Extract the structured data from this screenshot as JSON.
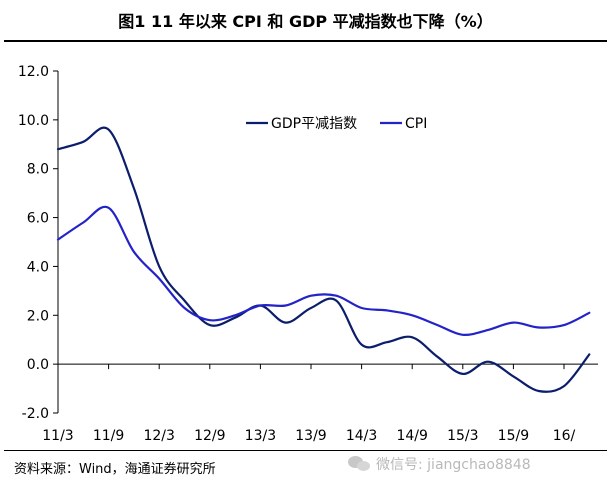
{
  "figure": {
    "title": "图1   11 年以来 CPI 和 GDP 平减指数也下降（%）",
    "source": "资料来源：Wind，海通证券研究所",
    "watermark": "微信号: jiangchao8848"
  },
  "chart_data": {
    "type": "line",
    "title": "图1   11 年以来 CPI 和 GDP 平减指数也下降（%）",
    "xlabel": "",
    "ylabel": "",
    "ylim": [
      -2.0,
      12.0
    ],
    "yticks": [
      -2.0,
      0.0,
      2.0,
      4.0,
      6.0,
      8.0,
      10.0,
      12.0
    ],
    "ytick_labels": [
      "-2.0",
      "0.0",
      "2.0",
      "4.0",
      "6.0",
      "8.0",
      "10.0",
      "12.0"
    ],
    "x_tick_labels": [
      "11/3",
      "11/9",
      "12/3",
      "12/9",
      "13/3",
      "13/9",
      "14/3",
      "14/9",
      "15/3",
      "15/9",
      "16/"
    ],
    "grid": false,
    "legend_position": "top-right",
    "colors": {
      "gdp": "#0b1e6b",
      "cpi": "#2323c8"
    },
    "series": [
      {
        "name": "GDP平减指数",
        "key": "gdp",
        "x": [
          0,
          3,
          6,
          9,
          12,
          15,
          18,
          21,
          24,
          27,
          30,
          33,
          36,
          39,
          42,
          45,
          48,
          51,
          54,
          57,
          60,
          63
        ],
        "values": [
          8.8,
          9.1,
          9.6,
          7.2,
          4.0,
          2.6,
          1.6,
          1.9,
          2.4,
          1.7,
          2.3,
          2.6,
          0.8,
          0.9,
          1.1,
          0.3,
          -0.4,
          0.1,
          -0.5,
          -1.1,
          -0.9,
          0.4
        ]
      },
      {
        "name": "CPI",
        "key": "cpi",
        "x": [
          0,
          3,
          6,
          9,
          12,
          15,
          18,
          21,
          24,
          27,
          30,
          33,
          36,
          39,
          42,
          45,
          48,
          51,
          54,
          57,
          60,
          63
        ],
        "values": [
          5.1,
          5.8,
          6.4,
          4.6,
          3.5,
          2.3,
          1.8,
          2.0,
          2.4,
          2.4,
          2.8,
          2.8,
          2.3,
          2.2,
          2.0,
          1.6,
          1.2,
          1.4,
          1.7,
          1.5,
          1.6,
          2.1
        ]
      }
    ]
  }
}
